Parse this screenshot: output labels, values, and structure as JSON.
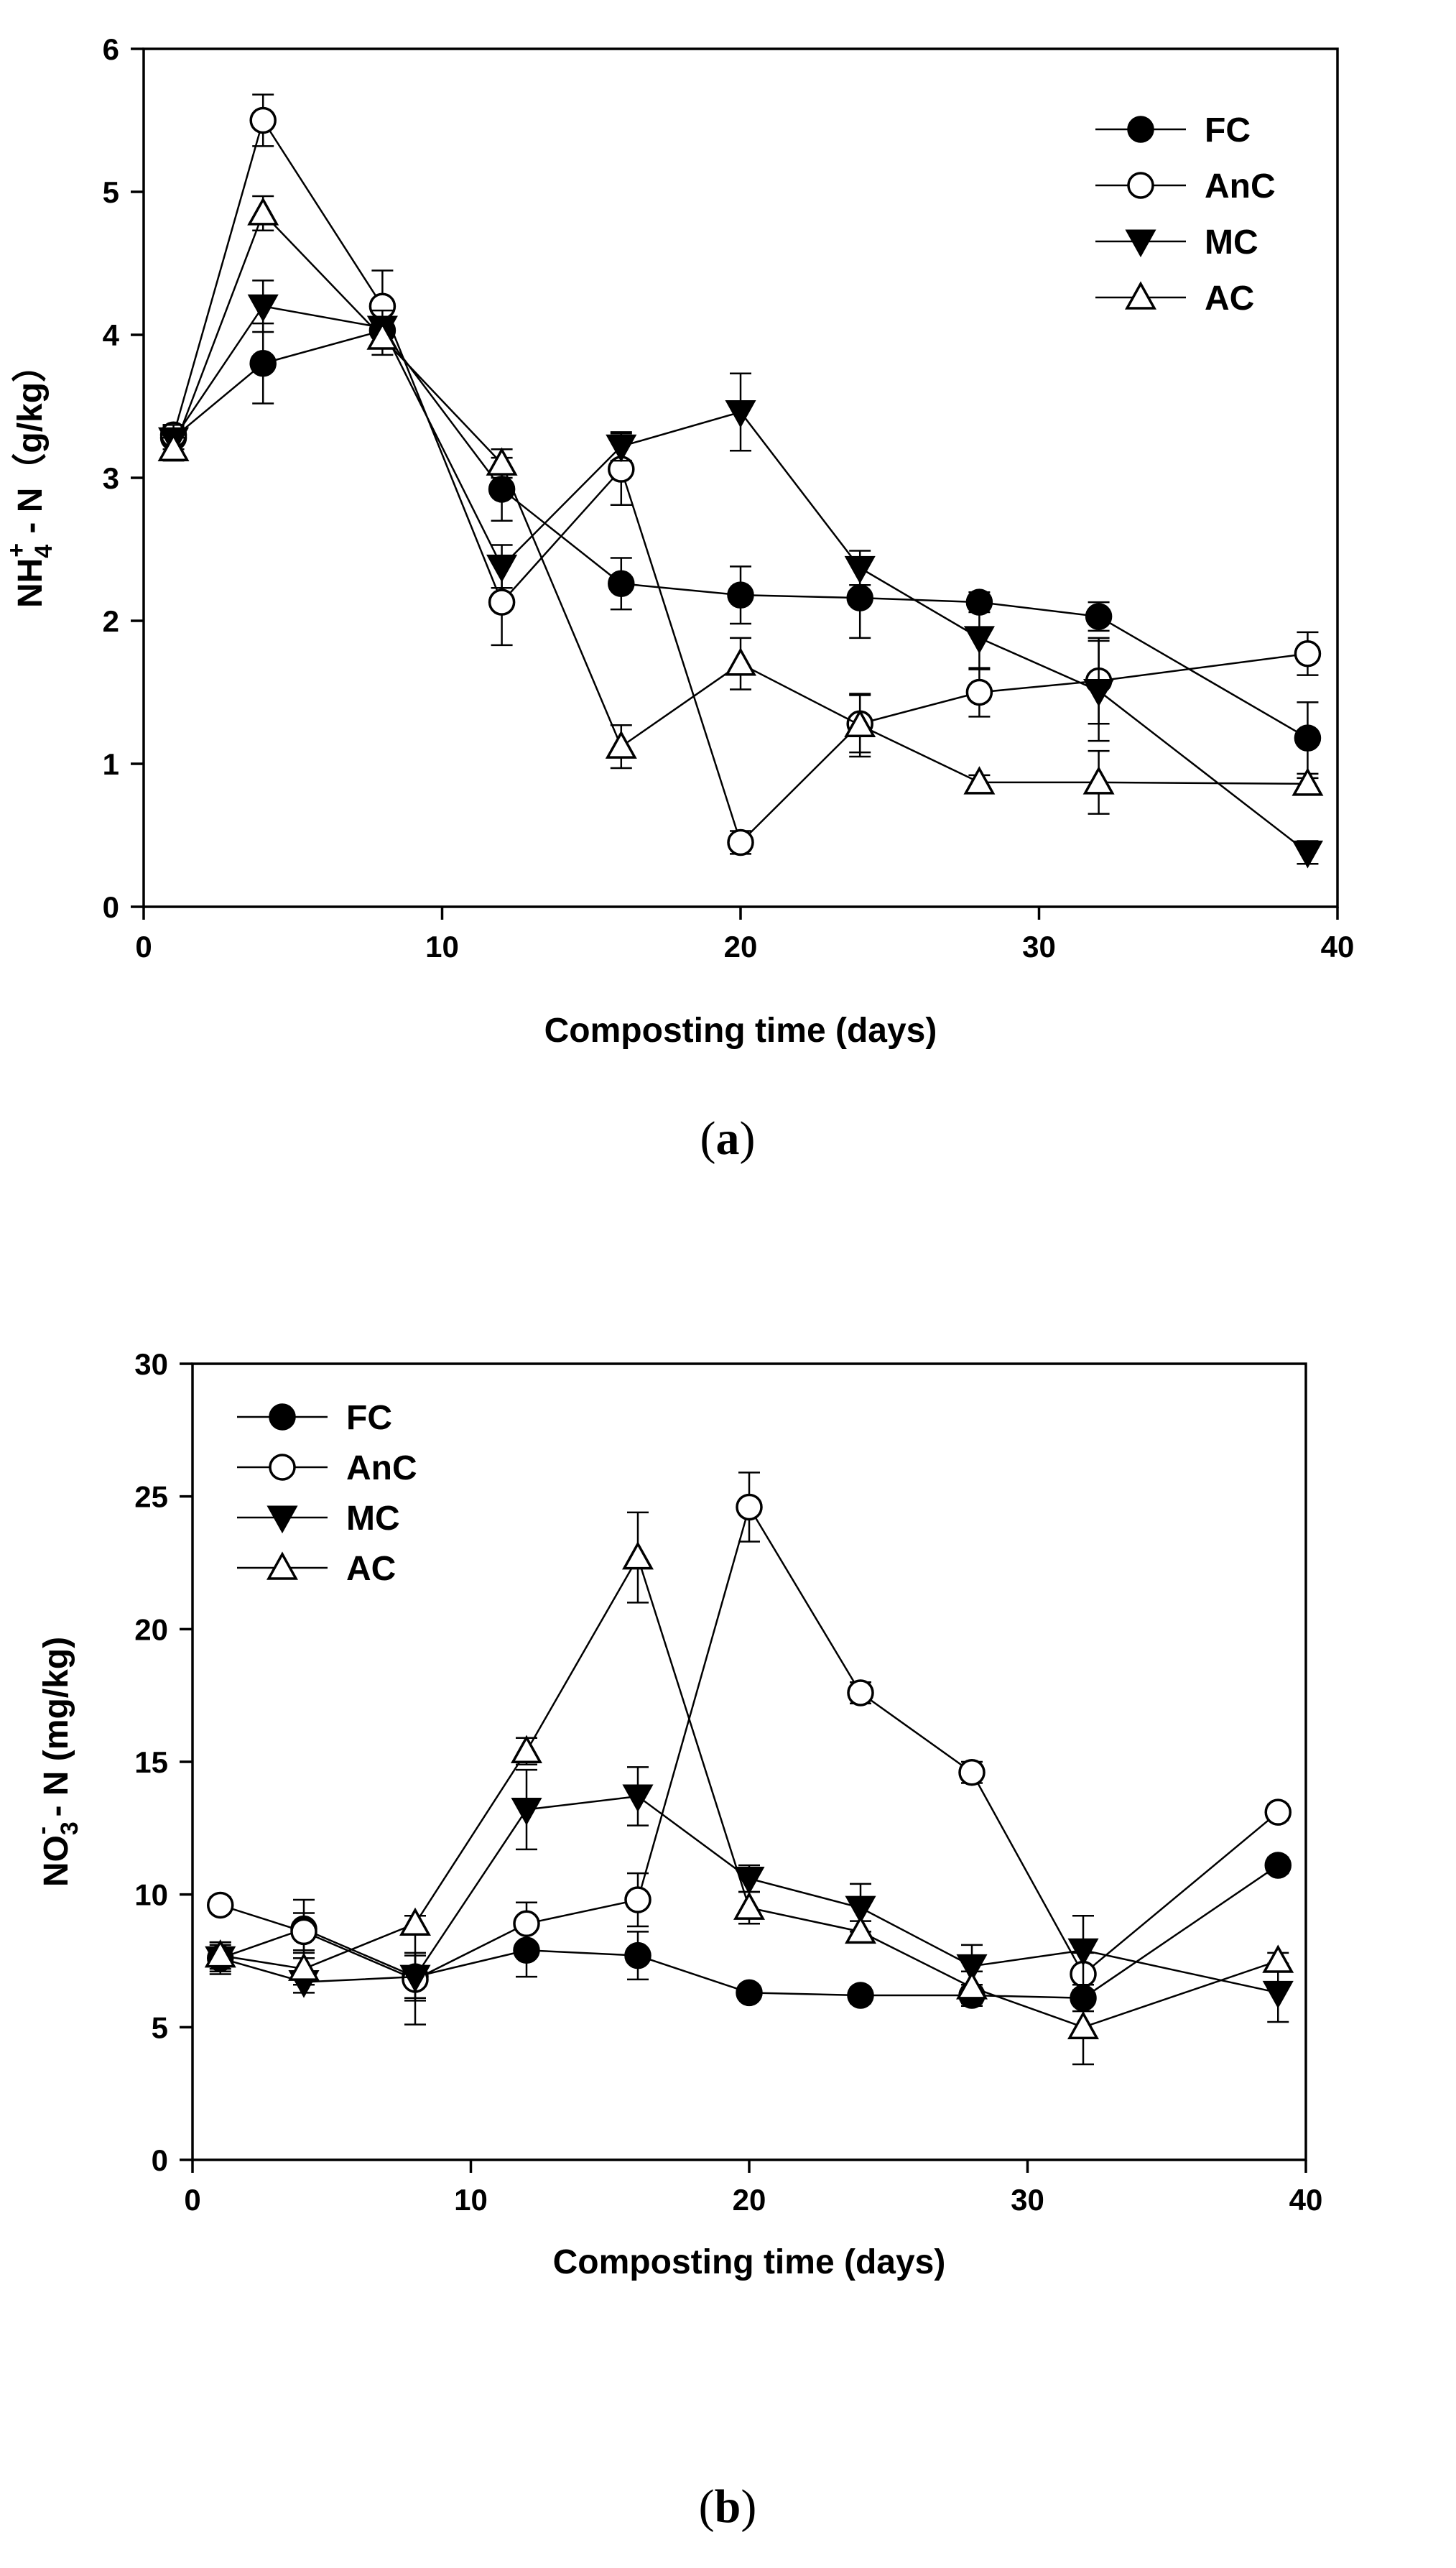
{
  "chart_data": [
    {
      "type": "line",
      "panel_label": "(a)",
      "panel_letter": "a",
      "xlabel": "Composting time (days)",
      "ylabel": "NH4+ - N (g/kg)",
      "ylabel_parts": {
        "base": "NH",
        "sub": "4",
        "sup": "+",
        "rest": " - N（g/kg）"
      },
      "xlim": [
        0,
        40
      ],
      "ylim": [
        0,
        6
      ],
      "xticks": [
        0,
        10,
        20,
        30,
        40
      ],
      "yticks": [
        0,
        1,
        2,
        3,
        4,
        5,
        6
      ],
      "legend_position": "top-right",
      "x": [
        1,
        4,
        8,
        12,
        16,
        20,
        24,
        28,
        32,
        39
      ],
      "series": [
        {
          "name": "FC",
          "marker": "circle-filled",
          "values": [
            3.28,
            3.8,
            4.03,
            2.92,
            2.26,
            2.18,
            2.16,
            2.13,
            2.03,
            1.18
          ],
          "errors": [
            0.08,
            0.28,
            0.12,
            0.22,
            0.18,
            0.2,
            0.28,
            0.07,
            0.1,
            0.25
          ]
        },
        {
          "name": "AnC",
          "marker": "circle-open",
          "values": [
            3.3,
            5.5,
            4.2,
            2.13,
            3.06,
            0.45,
            1.28,
            1.5,
            1.58,
            1.77
          ],
          "errors": [
            0.07,
            0.18,
            0.25,
            0.3,
            0.25,
            0.08,
            0.2,
            0.17,
            0.3,
            0.15
          ]
        },
        {
          "name": "MC",
          "marker": "triangle-down-filled",
          "values": [
            3.27,
            4.2,
            4.05,
            2.38,
            3.22,
            3.46,
            2.37,
            1.88,
            1.51,
            0.38
          ],
          "errors": [
            0.1,
            0.18,
            0.12,
            0.15,
            0.1,
            0.27,
            0.12,
            0.22,
            0.35,
            0.08
          ]
        },
        {
          "name": "AC",
          "marker": "triangle-up-open",
          "values": [
            3.2,
            4.85,
            3.98,
            3.1,
            1.12,
            1.7,
            1.27,
            0.87,
            0.87,
            0.86
          ],
          "errors": [
            0.08,
            0.12,
            0.12,
            0.1,
            0.15,
            0.18,
            0.22,
            0.05,
            0.22,
            0.04
          ]
        }
      ]
    },
    {
      "type": "line",
      "panel_label": "(b)",
      "panel_letter": "b",
      "xlabel": "Composting time (days)",
      "ylabel": "NO3- - N (mg/kg)",
      "ylabel_parts": {
        "base": "NO",
        "sub": "3",
        "sup": "-",
        "rest": " - N (mg/kg)"
      },
      "xlim": [
        0,
        40
      ],
      "ylim": [
        0,
        30
      ],
      "xticks": [
        0,
        10,
        20,
        30,
        40
      ],
      "yticks": [
        0,
        5,
        10,
        15,
        20,
        25,
        30
      ],
      "legend_position": "top-left",
      "x": [
        1,
        4,
        8,
        12,
        16,
        20,
        24,
        28,
        32,
        39
      ],
      "series": [
        {
          "name": "FC",
          "marker": "circle-filled",
          "values": [
            7.6,
            8.7,
            6.9,
            7.9,
            7.7,
            6.3,
            6.2,
            6.2,
            6.1,
            11.1
          ],
          "errors": [
            0.6,
            1.1,
            0.9,
            1.0,
            0.9,
            0.2,
            0.3,
            0.4,
            0.5,
            0.3
          ]
        },
        {
          "name": "AnC",
          "marker": "circle-open",
          "values": [
            9.6,
            8.6,
            6.8,
            8.9,
            9.8,
            24.6,
            17.6,
            14.6,
            7.0,
            13.1
          ],
          "errors": [
            0.3,
            0.7,
            1.7,
            0.8,
            1.0,
            1.3,
            0.4,
            0.4,
            0.8,
            0.3
          ]
        },
        {
          "name": "MC",
          "marker": "triangle-down-filled",
          "values": [
            7.6,
            6.7,
            6.9,
            13.2,
            13.7,
            10.6,
            9.5,
            7.3,
            7.9,
            6.3
          ],
          "errors": [
            0.5,
            0.4,
            0.8,
            1.5,
            1.1,
            0.5,
            0.9,
            0.8,
            1.3,
            1.1
          ]
        },
        {
          "name": "AC",
          "marker": "triangle-up-open",
          "values": [
            7.7,
            7.2,
            8.9,
            15.4,
            22.7,
            9.5,
            8.6,
            6.5,
            5.0,
            7.5
          ],
          "errors": [
            0.5,
            0.6,
            0.3,
            0.5,
            1.7,
            0.6,
            0.4,
            0.6,
            1.4,
            0.3
          ]
        }
      ]
    }
  ]
}
